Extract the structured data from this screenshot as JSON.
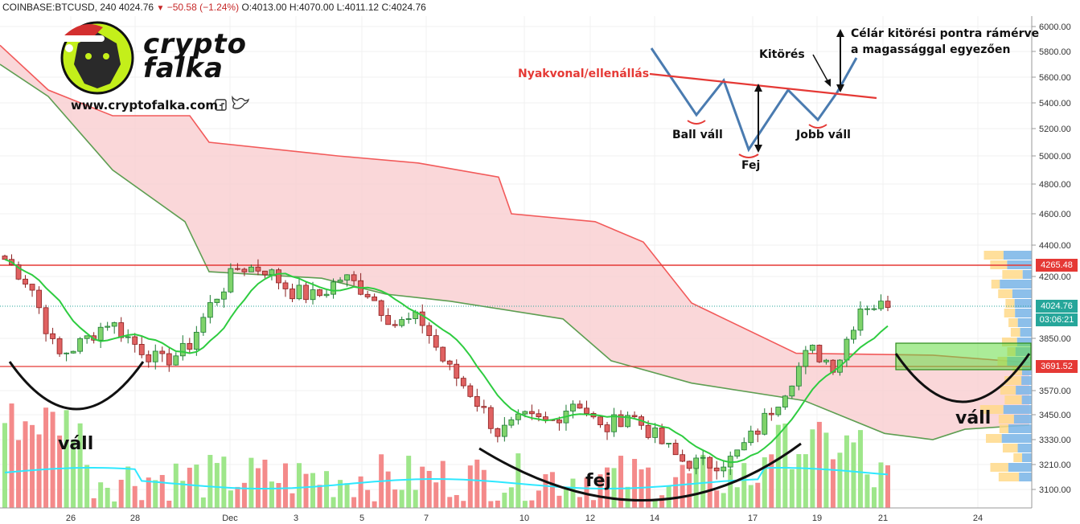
{
  "header": {
    "symbol": "COINBASE:BTCUSD, 240",
    "last": "4024.76",
    "change": "−50.58 (−1.24%)",
    "o_label": "O:",
    "o": "4013.00",
    "h_label": "H:",
    "h": "4070.00",
    "l_label": "L:",
    "l": "4011.12",
    "c_label": "C:",
    "c": "4024.76"
  },
  "brand": {
    "logo_text": "crypto falka",
    "website": "www.cryptofalka.com",
    "social_icons": [
      "facebook-icon",
      "twitter-icon"
    ]
  },
  "annotations": {
    "neckline": "Nyakvonal/ellenállás",
    "left_shoulder_diagram": "Ball váll",
    "head_diagram": "Fej",
    "right_shoulder_diagram": "Jobb váll",
    "breakout": "Kitörés",
    "target_line1": "Célár kitörési pontra rámérve",
    "target_line2": "a magassággal egyezően",
    "left_shoulder": "váll",
    "head": "fej",
    "right_shoulder": "váll"
  },
  "price_tags": {
    "resistance": "4265.48",
    "current": "4024.76",
    "countdown": "03:06:21",
    "support": "3691.52"
  },
  "colors": {
    "up": "#26a69a",
    "down": "#ef5350",
    "cloud": "#f8c9cc",
    "span_a": "#f25a5a",
    "span_b": "#5e9e52",
    "ma": "#2ecc40",
    "volume_ma": "#2ee8ff",
    "level": "#e53935",
    "accent_green": "#66dd44"
  },
  "chart_data": {
    "type": "candlestick",
    "title": "COINBASE:BTCUSD, 240",
    "x_ticks": [
      "26",
      "28",
      "Dec",
      "3",
      "5",
      "7",
      "10",
      "12",
      "14",
      "17",
      "19",
      "21",
      "24"
    ],
    "y_ticks": [
      6000,
      5800,
      5600,
      5400,
      5200,
      5000,
      4800,
      4600,
      4400,
      4200,
      3850,
      3570,
      3450,
      3330,
      3210,
      3100
    ],
    "horizontal_levels": [
      4265.48,
      3691.52
    ],
    "current_price": 4024.76,
    "close_path": [
      [
        "Nov 24",
        4310
      ],
      [
        "Nov 25",
        4150
      ],
      [
        "Nov 25b",
        3750
      ],
      [
        "Nov 26",
        3830
      ],
      [
        "Nov 26b",
        3950
      ],
      [
        "Nov 27",
        3820
      ],
      [
        "Nov 27b",
        3720
      ],
      [
        "Nov 28",
        3790
      ],
      [
        "Nov 28b",
        4060
      ],
      [
        "Nov 29",
        4260
      ],
      [
        "Nov 30",
        4250
      ],
      [
        "Nov 30b",
        4120
      ],
      [
        "Dec 1",
        4080
      ],
      [
        "Dec 2",
        4200
      ],
      [
        "Dec 3",
        4110
      ],
      [
        "Dec 4",
        3930
      ],
      [
        "Dec 5",
        3960
      ],
      [
        "Dec 6",
        3700
      ],
      [
        "Dec 7",
        3550
      ],
      [
        "Dec 7b",
        3360
      ],
      [
        "Dec 8",
        3430
      ],
      [
        "Dec 9",
        3410
      ],
      [
        "Dec 10",
        3530
      ],
      [
        "Dec 11",
        3370
      ],
      [
        "Dec 12",
        3460
      ],
      [
        "Dec 13",
        3350
      ],
      [
        "Dec 14",
        3230
      ],
      [
        "Dec 15",
        3210
      ],
      [
        "Dec 16",
        3235
      ],
      [
        "Dec 17",
        3380
      ],
      [
        "Dec 18",
        3570
      ],
      [
        "Dec 19",
        3790
      ],
      [
        "Dec 19b",
        3700
      ],
      [
        "Dec 20",
        4050
      ],
      [
        "Dec 21",
        4024.76
      ]
    ]
  }
}
